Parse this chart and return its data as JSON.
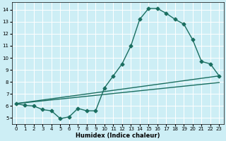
{
  "xlabel": "Humidex (Indice chaleur)",
  "xlim": [
    -0.5,
    23.5
  ],
  "ylim": [
    4.5,
    14.6
  ],
  "yticks": [
    5,
    6,
    7,
    8,
    9,
    10,
    11,
    12,
    13,
    14
  ],
  "xticks": [
    0,
    1,
    2,
    3,
    4,
    5,
    6,
    7,
    8,
    9,
    10,
    11,
    12,
    13,
    14,
    15,
    16,
    17,
    18,
    19,
    20,
    21,
    22,
    23
  ],
  "bg_color": "#cdeef5",
  "line_color": "#1a6e60",
  "grid_color": "#ffffff",
  "curve1_x": [
    0,
    1,
    2,
    3,
    4,
    5,
    6,
    7,
    8,
    9,
    10,
    11,
    12,
    13,
    14,
    15,
    16,
    17,
    18,
    19,
    20,
    21,
    22,
    23
  ],
  "curve1_y": [
    6.2,
    6.05,
    6.0,
    5.7,
    5.6,
    4.95,
    5.1,
    5.8,
    5.6,
    5.6,
    7.5,
    8.5,
    9.5,
    11.0,
    13.2,
    14.1,
    14.1,
    13.7,
    13.2,
    12.8,
    11.5,
    9.7,
    9.5,
    8.5
  ],
  "curve2_x": [
    0,
    23
  ],
  "curve2_y": [
    6.2,
    8.5
  ],
  "curve3_x": [
    0,
    23
  ],
  "curve3_y": [
    6.2,
    7.95
  ]
}
